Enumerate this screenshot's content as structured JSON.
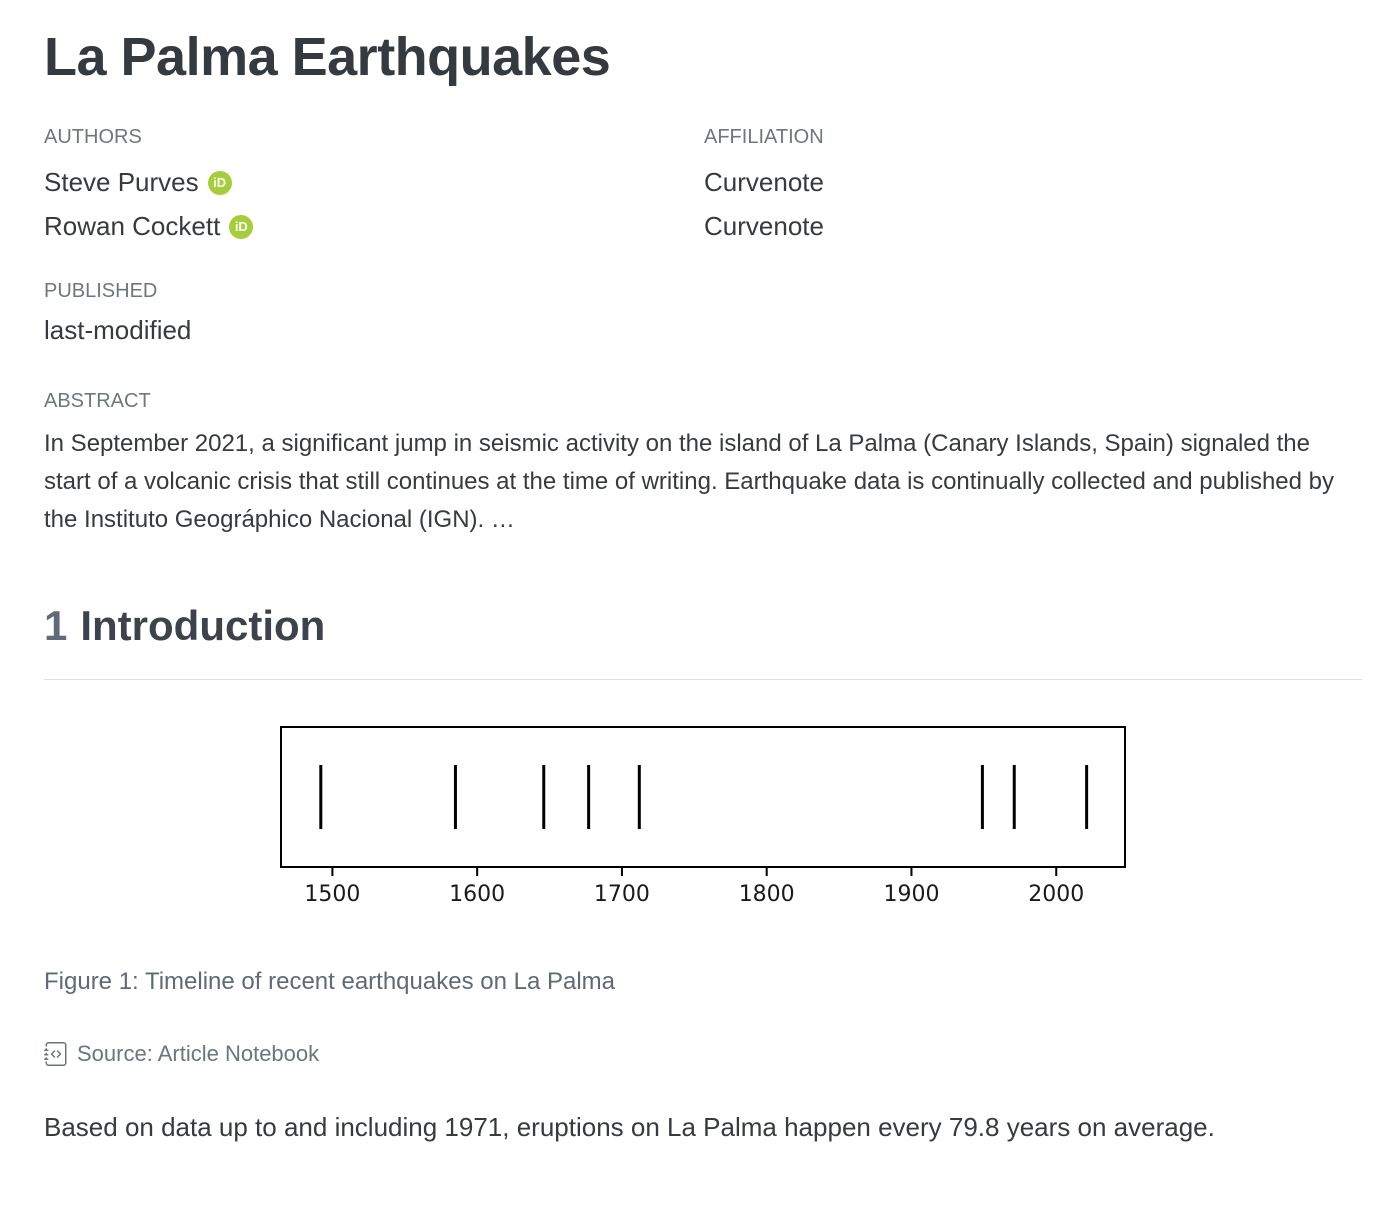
{
  "page": {
    "title": "La Palma Earthquakes"
  },
  "frontmatter": {
    "authors_label": "AUTHORS",
    "affiliation_label": "AFFILIATION",
    "authors": [
      {
        "name": "Steve Purves",
        "affiliation": "Curvenote"
      },
      {
        "name": "Rowan Cockett",
        "affiliation": "Curvenote"
      }
    ],
    "published_label": "PUBLISHED",
    "published_value": "last-modified",
    "abstract_label": "ABSTRACT",
    "abstract_text": "In September 2021, a significant jump in seismic activity on the island of La Palma (Canary Islands, Spain) signaled the start of a volcanic crisis that still continues at the time of writing. Earthquake data is continually collected and published by the Instituto Geográphico Nacional (IGN). …"
  },
  "section": {
    "number": "1",
    "title": "Introduction"
  },
  "figure": {
    "caption": "Figure 1: Timeline of recent earthquakes on La Palma",
    "source_text": "Source: Article Notebook"
  },
  "paragraph": "Based on data up to and including 1971, eruptions on La Palma happen every 79.8 years on average.",
  "icons": {
    "orcid_label": "iD"
  },
  "colors": {
    "orcid_green": "#a6ce39",
    "heading_text": "#343a40",
    "muted_text": "#6c757d",
    "caption_text": "#5f6a75",
    "rule": "#dee2e6",
    "plot_line": "#000000"
  },
  "chart_data": {
    "type": "eventplot",
    "title": "",
    "xlabel": "",
    "ylabel": "",
    "events": [
      1492,
      1585,
      1646,
      1677,
      1712,
      1949,
      1971,
      2021
    ],
    "xticks": [
      1500,
      1600,
      1700,
      1800,
      1900,
      2000
    ],
    "xlim": [
      1464.5,
      2047.5
    ],
    "grid": false,
    "legend": false,
    "line_color": "#000000",
    "tick_label_color": "#1a1a1a"
  }
}
